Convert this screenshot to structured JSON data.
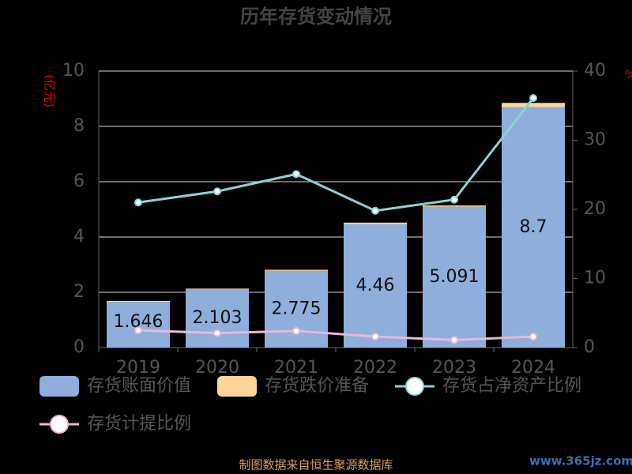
{
  "chart_data": {
    "type": "bar_line",
    "title": "历年存货变动情况",
    "y_label": "(亿元)",
    "y2_label": "%",
    "source": "制图数据来自恒生聚源数据库",
    "watermark": "www.365jz.com",
    "categories": [
      "2019",
      "2020",
      "2021",
      "2022",
      "2023",
      "2024"
    ],
    "series": [
      {
        "name": "存货账面价值",
        "kind": "bar",
        "color": "#8eaedc",
        "values": [
          1.646,
          2.103,
          2.775,
          4.46,
          5.091,
          8.7
        ]
      },
      {
        "name": "存货跌价准备",
        "kind": "bar",
        "color": "#fdd59a",
        "values": [
          0.04,
          0.03,
          0.04,
          0.06,
          0.05,
          0.15
        ]
      },
      {
        "name": "存货占净资产比例",
        "kind": "line",
        "axis": "y2",
        "color": "#8ad3d6",
        "values": [
          21.0,
          22.6,
          25.1,
          19.8,
          21.4,
          36.1
        ]
      },
      {
        "name": "存货计提比例",
        "kind": "line",
        "axis": "y2",
        "color": "#e7b9d8",
        "values": [
          2.5,
          2.1,
          2.4,
          1.6,
          1.1,
          1.6
        ]
      }
    ],
    "ylim": [
      0,
      10
    ],
    "yticks": [
      0,
      2,
      4,
      6,
      8,
      10
    ],
    "y2lim": [
      0,
      40
    ],
    "y2ticks": [
      0,
      10,
      20,
      30,
      40
    ],
    "grid": true
  }
}
